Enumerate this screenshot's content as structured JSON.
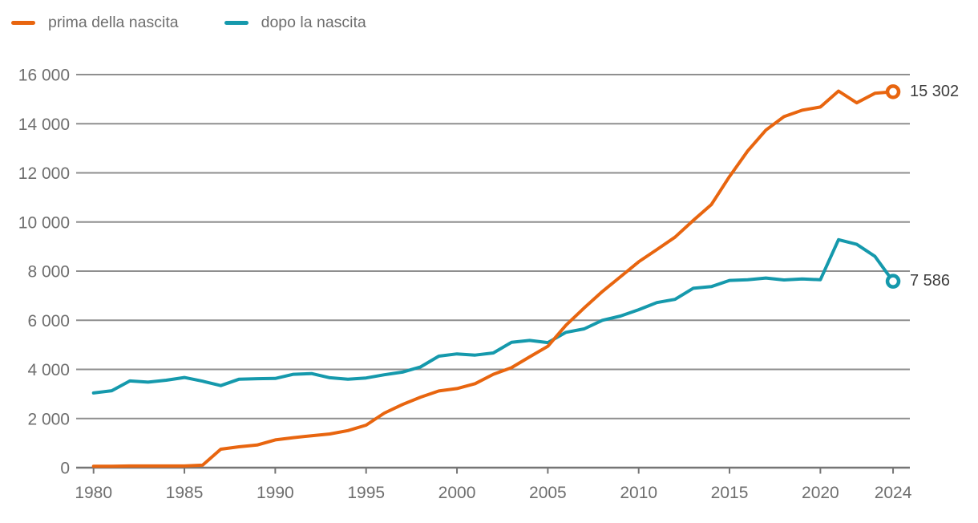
{
  "chart_data": {
    "type": "line",
    "year_start": 1980,
    "series": [
      {
        "name": "prima della nascita",
        "color": "#e8650f",
        "end_label": "15 302",
        "end_value": 15302,
        "values": [
          60,
          60,
          70,
          70,
          70,
          70,
          100,
          750,
          850,
          920,
          1130,
          1220,
          1300,
          1370,
          1510,
          1730,
          2220,
          2570,
          2870,
          3120,
          3220,
          3420,
          3800,
          4070,
          4510,
          4940,
          5800,
          6500,
          7170,
          7770,
          8380,
          8880,
          9380,
          10060,
          10710,
          11850,
          12890,
          13740,
          14290,
          14550,
          14680,
          15330,
          14850,
          15240,
          15302
        ]
      },
      {
        "name": "dopo la nascita",
        "color": "#1599ac",
        "end_label": "7 586",
        "end_value": 7586,
        "values": [
          3040,
          3130,
          3530,
          3480,
          3560,
          3670,
          3520,
          3340,
          3600,
          3620,
          3630,
          3800,
          3830,
          3660,
          3600,
          3650,
          3780,
          3890,
          4100,
          4540,
          4630,
          4580,
          4670,
          5100,
          5180,
          5090,
          5510,
          5650,
          6000,
          6170,
          6430,
          6720,
          6850,
          7300,
          7370,
          7620,
          7650,
          7720,
          7640,
          7680,
          7650,
          9280,
          9090,
          8600,
          7586
        ]
      }
    ],
    "xtick_values": [
      1980,
      1985,
      1990,
      1995,
      2000,
      2005,
      2010,
      2015,
      2020,
      2024
    ],
    "xtick_labels": [
      "1980",
      "1985",
      "1990",
      "1995",
      "2000",
      "2005",
      "2010",
      "2015",
      "2020",
      "2024"
    ],
    "ytick_values": [
      0,
      2000,
      4000,
      6000,
      8000,
      10000,
      12000,
      14000,
      16000
    ],
    "ytick_labels": [
      "0",
      "2 000",
      "4 000",
      "6 000",
      "8 000",
      "10 000",
      "12 000",
      "14 000",
      "16 000"
    ],
    "xlim": [
      1980,
      2024
    ],
    "ylim": [
      0,
      16000
    ],
    "grid": "horizontal",
    "legend_position": "top-left",
    "colors": {
      "grid_line": "#8f8f8f",
      "axis_line": "#757575",
      "tick_label": "#6e6e6e",
      "end_label": "#3c3c3c",
      "background": "#ffffff"
    }
  }
}
